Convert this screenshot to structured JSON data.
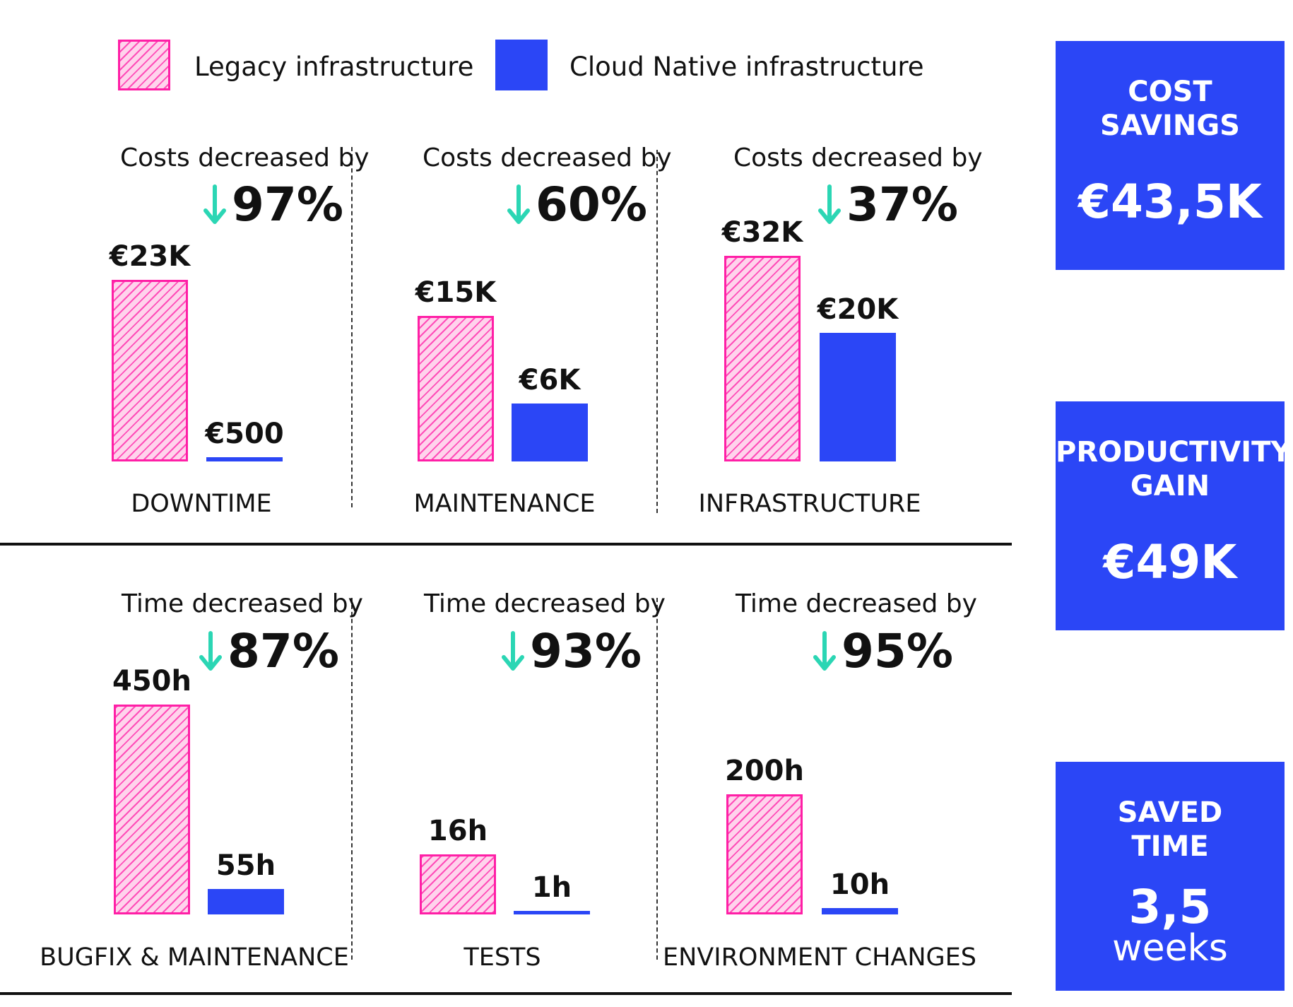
{
  "legend": {
    "legacy_label": "Legacy infrastructure",
    "cloud_label": "Cloud Native infrastructure"
  },
  "colors": {
    "legacy_stroke": "#ff1fa6",
    "legacy_fill": "#ffd3ec",
    "cloud": "#2b46f6",
    "arrow": "#2bd6b4"
  },
  "chart_data": [
    {
      "type": "bar",
      "category": "DOWNTIME",
      "heading": "Costs decreased by",
      "change": "97%",
      "series": [
        {
          "name": "Legacy infrastructure",
          "value": 23000,
          "label": "€23K"
        },
        {
          "name": "Cloud Native infrastructure",
          "value": 500,
          "label": "€500"
        }
      ]
    },
    {
      "type": "bar",
      "category": "MAINTENANCE",
      "heading": "Costs decreased by",
      "change": "60%",
      "series": [
        {
          "name": "Legacy infrastructure",
          "value": 15000,
          "label": "€15K"
        },
        {
          "name": "Cloud Native infrastructure",
          "value": 6000,
          "label": "€6K"
        }
      ]
    },
    {
      "type": "bar",
      "category": "INFRASTRUCTURE",
      "heading": "Costs decreased by",
      "change": "37%",
      "series": [
        {
          "name": "Legacy infrastructure",
          "value": 32000,
          "label": "€32K"
        },
        {
          "name": "Cloud Native infrastructure",
          "value": 20000,
          "label": "€20K"
        }
      ]
    },
    {
      "type": "bar",
      "category": "BUGFIX & MAINTENANCE",
      "heading": "Time decreased by",
      "change": "87%",
      "series": [
        {
          "name": "Legacy infrastructure",
          "value": 450,
          "label": "450h"
        },
        {
          "name": "Cloud Native infrastructure",
          "value": 55,
          "label": "55h"
        }
      ]
    },
    {
      "type": "bar",
      "category": "TESTS",
      "heading": "Time decreased by",
      "change": "93%",
      "series": [
        {
          "name": "Legacy infrastructure",
          "value": 16,
          "label": "16h"
        },
        {
          "name": "Cloud Native infrastructure",
          "value": 1,
          "label": "1h"
        }
      ]
    },
    {
      "type": "bar",
      "category": "ENVIRONMENT CHANGES",
      "heading": "Time decreased by",
      "change": "95%",
      "series": [
        {
          "name": "Legacy infrastructure",
          "value": 200,
          "label": "200h"
        },
        {
          "name": "Cloud Native infrastructure",
          "value": 10,
          "label": "10h"
        }
      ]
    }
  ],
  "kpis": [
    {
      "title": "COST\nSAVINGS",
      "value": "€43,5K",
      "unit": ""
    },
    {
      "title": "PRODUCTIVITY\nGAIN",
      "value": "€49K",
      "unit": ""
    },
    {
      "title": "SAVED\nTIME",
      "value": "3,5",
      "unit": "weeks"
    }
  ]
}
